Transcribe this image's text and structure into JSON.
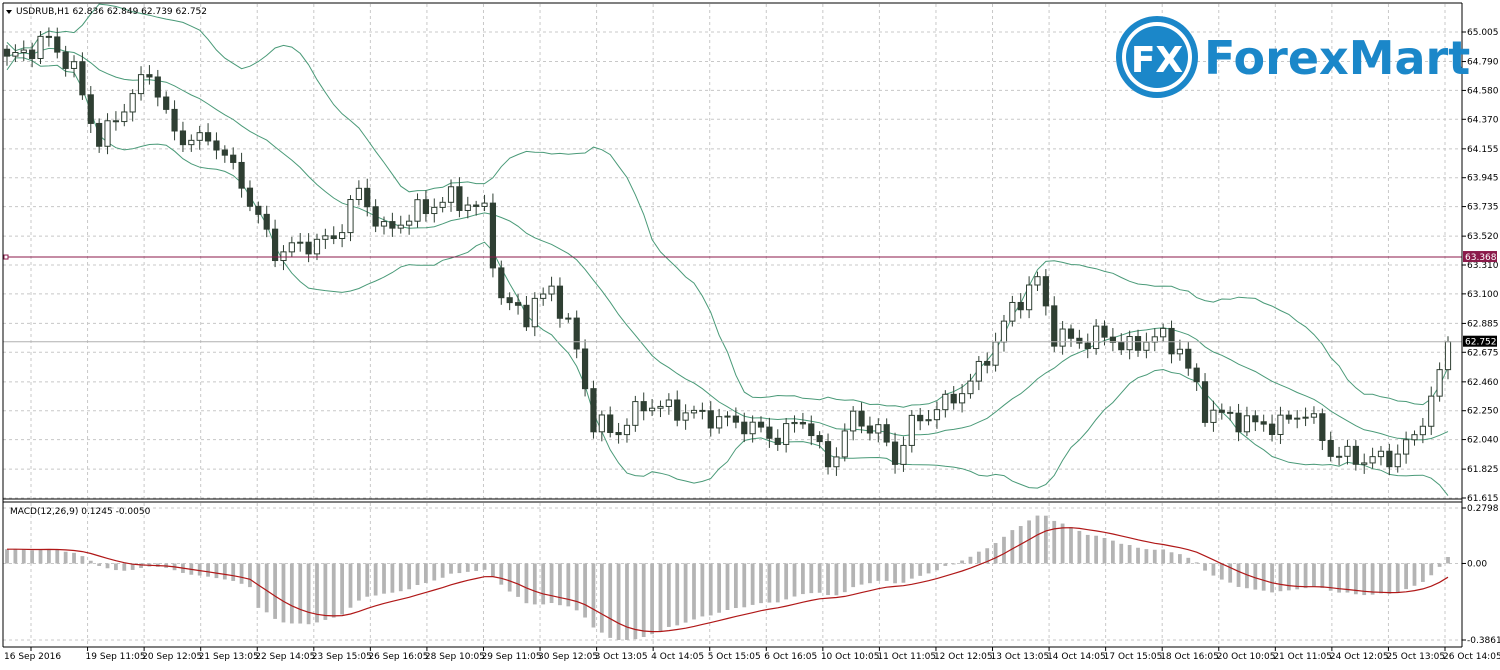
{
  "symbol_info": "USDRUB,H1  62.836 62.849 62.739 62.752",
  "indicator_info": "MACD(12,26,9) 0.1245 -0.0050",
  "logo": {
    "mark": "FX",
    "text": "ForexMart"
  },
  "colors": {
    "background": "#ffffff",
    "grid": "#c8c8c8",
    "bull_candle": "#ffffff",
    "bear_candle": "#2f3f33",
    "candle_outline": "#2f3f33",
    "bollinger": "#4a9a78",
    "hline": "#8b1a4a",
    "macd_hist": "#b4b4b4",
    "macd_signal": "#b01818",
    "logo_blue": "#1b87c9"
  },
  "chart_data": [
    {
      "type": "candlestick",
      "timeframe": "H1",
      "y_ticks": [
        65.005,
        64.79,
        64.58,
        64.37,
        64.155,
        63.945,
        63.735,
        63.52,
        63.31,
        63.1,
        62.885,
        62.675,
        62.46,
        62.25,
        62.04,
        61.825,
        61.615
      ],
      "ylim": [
        61.6,
        65.2
      ],
      "x_ticks": [
        "16 Sep 2016",
        "19 Sep 11:05",
        "20 Sep 12:05",
        "21 Sep 13:05",
        "22 Sep 14:05",
        "23 Sep 15:05",
        "26 Sep 16:05",
        "28 Sep 10:05",
        "29 Sep 11:05",
        "30 Sep 12:05",
        "3 Oct 13:05",
        "4 Oct 14:05",
        "5 Oct 15:05",
        "6 Oct 16:05",
        "10 Oct 10:05",
        "11 Oct 11:05",
        "12 Oct 12:05",
        "13 Oct 13:05",
        "14 Oct 14:05",
        "17 Oct 15:05",
        "18 Oct 16:05",
        "20 Oct 10:05",
        "21 Oct 11:05",
        "24 Oct 12:05",
        "25 Oct 13:05",
        "26 Oct 14:05"
      ],
      "close_path": [
        [
          0,
          64.8
        ],
        [
          5,
          64.95
        ],
        [
          8,
          64.72
        ],
        [
          11,
          64.2
        ],
        [
          15,
          64.55
        ],
        [
          17,
          64.72
        ],
        [
          20,
          64.25
        ],
        [
          25,
          64.2
        ],
        [
          28,
          63.9
        ],
        [
          32,
          63.4
        ],
        [
          35,
          63.45
        ],
        [
          39,
          63.5
        ],
        [
          42,
          63.85
        ],
        [
          45,
          63.55
        ],
        [
          49,
          63.7
        ],
        [
          53,
          63.8
        ],
        [
          57,
          63.7
        ],
        [
          59,
          63.05
        ],
        [
          62,
          62.95
        ],
        [
          65,
          63.15
        ],
        [
          68,
          62.7
        ],
        [
          70,
          62.15
        ],
        [
          73,
          62.1
        ],
        [
          76,
          62.3
        ],
        [
          80,
          62.25
        ],
        [
          84,
          62.2
        ],
        [
          88,
          62.15
        ],
        [
          92,
          62.05
        ],
        [
          95,
          62.2
        ],
        [
          98,
          61.85
        ],
        [
          101,
          62.2
        ],
        [
          104,
          62.1
        ],
        [
          106,
          61.9
        ],
        [
          108,
          62.15
        ],
        [
          112,
          62.3
        ],
        [
          115,
          62.45
        ],
        [
          118,
          62.75
        ],
        [
          120,
          63.0
        ],
        [
          123,
          63.2
        ],
        [
          125,
          62.8
        ],
        [
          128,
          62.75
        ],
        [
          131,
          62.8
        ],
        [
          134,
          62.7
        ],
        [
          137,
          62.8
        ],
        [
          140,
          62.7
        ],
        [
          143,
          62.25
        ],
        [
          146,
          62.2
        ],
        [
          149,
          62.15
        ],
        [
          152,
          62.15
        ],
        [
          155,
          62.25
        ],
        [
          158,
          61.95
        ],
        [
          161,
          61.9
        ],
        [
          165,
          61.9
        ],
        [
          168,
          62.05
        ],
        [
          171,
          62.5
        ],
        [
          172,
          62.78
        ]
      ],
      "candle_count": 173,
      "last_price": "62.752",
      "horizontal_line": {
        "price": 63.368,
        "label": "63.368"
      },
      "bollinger": {
        "period": 20,
        "std_dev": 2
      }
    },
    {
      "type": "macd",
      "params": [
        12,
        26,
        9
      ],
      "y_ticks": [
        0.2798,
        0.0,
        -0.3861
      ],
      "ylim": [
        -0.386,
        0.28
      ]
    }
  ]
}
